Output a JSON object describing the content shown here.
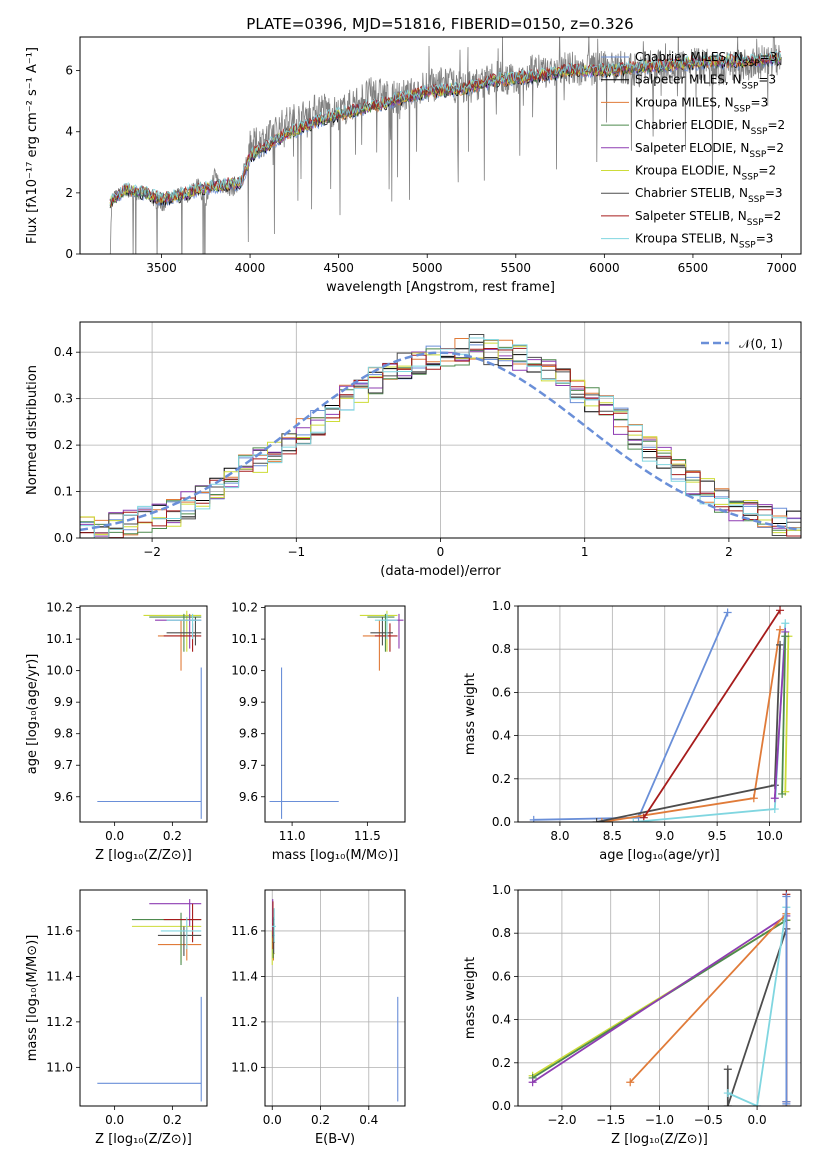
{
  "colors": {
    "Chabrier MILES": "#6a8fd8",
    "Salpeter MILES": "#000000",
    "Kroupa MILES": "#e07b39",
    "Chabrier ELODIE": "#4e8a4e",
    "Salpeter ELODIE": "#8e3db2",
    "Kroupa ELODIE": "#cddc39",
    "Chabrier STELIB": "#4d4d4d",
    "Salpeter STELIB": "#a61c1c",
    "Kroupa STELIB": "#80d6e0"
  },
  "figure_title": "PLATE=0396, MJD=51816, FIBERID=0150, z=0.326",
  "chart_data": [
    {
      "id": "spectrum",
      "type": "line",
      "xlabel": "wavelength [Angstrom, rest frame]",
      "ylabel": "Flux [fλ10⁻¹⁷ erg cm⁻² s⁻¹ A⁻¹]",
      "xlim": [
        3040,
        7110
      ],
      "ylim": [
        0,
        7.1
      ],
      "xticks": [
        3500,
        4000,
        4500,
        5000,
        5500,
        6000,
        6500,
        7000
      ],
      "yticks": [
        0,
        2,
        4,
        6
      ],
      "legend_position": "top-right",
      "legend": [
        "Chabrier MILES, N_SSP=3",
        "Salpeter MILES, N_SSP=3",
        "Kroupa MILES, N_SSP=3",
        "Chabrier ELODIE, N_SSP=2",
        "Salpeter ELODIE, N_SSP=2",
        "Kroupa ELODIE, N_SSP=2",
        "Chabrier STELIB, N_SSP=3",
        "Salpeter STELIB, N_SSP=2",
        "Kroupa STELIB, N_SSP=3"
      ],
      "data_series": {
        "name": "data",
        "color": "#808080",
        "x": [
          3210,
          3220,
          3250,
          3300,
          3350,
          3400,
          3450,
          3500,
          3550,
          3600,
          3650,
          3700,
          3750,
          3800,
          3850,
          3900,
          3950,
          4000,
          4100,
          4200,
          4300,
          4400,
          4500,
          4600,
          4700,
          4800,
          4900,
          5000,
          5100,
          5200,
          5300,
          5400,
          5500,
          5600,
          5700,
          5800,
          5900,
          6000,
          6100,
          6200,
          6300,
          6400,
          6500,
          6600,
          6700,
          6800,
          6900,
          7000
        ],
        "y": [
          0,
          1.8,
          1.9,
          2.1,
          2.0,
          2.0,
          1.8,
          1.6,
          1.7,
          2.0,
          1.9,
          2.3,
          1.7,
          2.6,
          2.2,
          2.1,
          2.4,
          3.5,
          3.8,
          4.3,
          4.5,
          4.8,
          4.6,
          5.0,
          5.3,
          5.1,
          5.2,
          5.5,
          5.6,
          5.4,
          5.6,
          5.8,
          5.7,
          6.0,
          5.9,
          6.1,
          6.0,
          6.2,
          6.1,
          6.0,
          6.2,
          6.1,
          6.3,
          6.0,
          6.1,
          6.2,
          6.3,
          6.4
        ]
      },
      "model_envelope": {
        "x": [
          3210,
          3300,
          3400,
          3500,
          3600,
          3700,
          3800,
          3900,
          3950,
          4000,
          4200,
          4400,
          4600,
          4800,
          5000,
          5200,
          5400,
          5600,
          5800,
          6000,
          6200,
          6400,
          6600,
          6800,
          7000
        ],
        "y": [
          1.7,
          2.1,
          2.0,
          1.8,
          1.9,
          2.1,
          2.2,
          2.3,
          2.3,
          3.2,
          3.9,
          4.4,
          4.7,
          5.0,
          5.3,
          5.4,
          5.7,
          5.8,
          6.0,
          6.0,
          6.1,
          6.2,
          6.3,
          6.3,
          6.4
        ]
      }
    },
    {
      "id": "residuals",
      "type": "step",
      "xlabel": "(data-model)/error",
      "ylabel": "Normed distribution",
      "xlim": [
        -2.5,
        2.5
      ],
      "ylim": [
        0,
        0.465
      ],
      "xticks": [
        -2,
        -1,
        0,
        1,
        2
      ],
      "yticks": [
        0.0,
        0.1,
        0.2,
        0.3,
        0.4
      ],
      "legend": [
        "𝒩(0, 1)"
      ],
      "legend_position": "top-right",
      "normal": {
        "mean": 0,
        "sigma": 1,
        "color": "#6a8fd8"
      },
      "bin_edges": [
        -2.5,
        -2.4,
        -2.3,
        -2.2,
        -2.1,
        -2.0,
        -1.9,
        -1.8,
        -1.7,
        -1.6,
        -1.5,
        -1.4,
        -1.3,
        -1.2,
        -1.1,
        -1.0,
        -0.9,
        -0.8,
        -0.7,
        -0.6,
        -0.5,
        -0.4,
        -0.3,
        -0.2,
        -0.1,
        0.0,
        0.1,
        0.2,
        0.3,
        0.4,
        0.5,
        0.6,
        0.7,
        0.8,
        0.9,
        1.0,
        1.1,
        1.2,
        1.3,
        1.4,
        1.5,
        1.6,
        1.7,
        1.8,
        1.9,
        2.0,
        2.1,
        2.2,
        2.3,
        2.4,
        2.5
      ],
      "hist_base": [
        0.02,
        0.025,
        0.03,
        0.035,
        0.04,
        0.045,
        0.055,
        0.07,
        0.085,
        0.105,
        0.13,
        0.15,
        0.17,
        0.19,
        0.21,
        0.23,
        0.25,
        0.28,
        0.3,
        0.32,
        0.34,
        0.36,
        0.37,
        0.38,
        0.39,
        0.39,
        0.4,
        0.41,
        0.4,
        0.4,
        0.39,
        0.38,
        0.36,
        0.34,
        0.32,
        0.3,
        0.28,
        0.25,
        0.22,
        0.19,
        0.17,
        0.14,
        0.12,
        0.1,
        0.08,
        0.065,
        0.055,
        0.045,
        0.035,
        0.03
      ],
      "series_names": [
        "Chabrier MILES",
        "Salpeter MILES",
        "Kroupa MILES",
        "Chabrier ELODIE",
        "Salpeter ELODIE",
        "Kroupa ELODIE",
        "Chabrier STELIB",
        "Salpeter STELIB",
        "Kroupa STELIB"
      ]
    },
    {
      "id": "age_vs_Z",
      "type": "errorbar",
      "xlabel": "Z [log₁₀(Z/Z⊙)]",
      "ylabel": "age  [log₁₀(age/yr)]",
      "xlim": [
        -0.12,
        0.32
      ],
      "ylim": [
        9.52,
        10.205
      ],
      "xticks": [
        0.0,
        0.2
      ],
      "yticks": [
        9.6,
        9.7,
        9.8,
        9.9,
        10.0,
        10.1,
        10.2
      ],
      "points": [
        {
          "s": "Chabrier MILES",
          "x": 0.3,
          "y": 9.585,
          "xl": -0.06,
          "xh": 0.3,
          "yl": 9.53,
          "yh": 10.01
        },
        {
          "s": "Kroupa MILES",
          "x": 0.23,
          "y": 10.11,
          "xl": 0.15,
          "xh": 0.28,
          "yl": 10.0,
          "yh": 10.16
        },
        {
          "s": "Kroupa ELODIE",
          "x": 0.25,
          "y": 10.175,
          "xl": 0.1,
          "xh": 0.3,
          "yl": 10.06,
          "yh": 10.19
        },
        {
          "s": "Salpeter ELODIE",
          "x": 0.26,
          "y": 10.16,
          "xl": 0.14,
          "xh": 0.3,
          "yl": 10.07,
          "yh": 10.18
        },
        {
          "s": "Chabrier ELODIE",
          "x": 0.24,
          "y": 10.17,
          "xl": 0.12,
          "xh": 0.3,
          "yl": 10.06,
          "yh": 10.18
        },
        {
          "s": "Salpeter STELIB",
          "x": 0.27,
          "y": 10.11,
          "xl": 0.17,
          "xh": 0.3,
          "yl": 10.06,
          "yh": 10.15
        },
        {
          "s": "Chabrier STELIB",
          "x": 0.28,
          "y": 10.12,
          "xl": 0.18,
          "xh": 0.3,
          "yl": 10.08,
          "yh": 10.17
        },
        {
          "s": "Kroupa STELIB",
          "x": 0.27,
          "y": 10.16,
          "xl": 0.18,
          "xh": 0.3,
          "yl": 10.1,
          "yh": 10.18
        }
      ]
    },
    {
      "id": "age_vs_mass",
      "type": "errorbar",
      "xlabel": "mass [log₁₀(M/M⊙)]",
      "ylabel": "",
      "xlim": [
        10.82,
        11.75
      ],
      "ylim": [
        9.52,
        10.205
      ],
      "xticks": [
        11.0,
        11.5
      ],
      "yticks": [
        9.6,
        9.7,
        9.8,
        9.9,
        10.0,
        10.1,
        10.2
      ],
      "points": [
        {
          "s": "Chabrier MILES",
          "x": 10.93,
          "y": 9.585,
          "xl": 10.85,
          "xh": 11.31,
          "yl": 9.53,
          "yh": 10.01
        },
        {
          "s": "Kroupa MILES",
          "x": 11.58,
          "y": 10.11,
          "xl": 11.47,
          "xh": 11.65,
          "yl": 10.0,
          "yh": 10.16
        },
        {
          "s": "Kroupa ELODIE",
          "x": 11.63,
          "y": 10.175,
          "xl": 11.45,
          "xh": 11.7,
          "yl": 10.06,
          "yh": 10.19
        },
        {
          "s": "Salpeter ELODIE",
          "x": 11.71,
          "y": 10.16,
          "xl": 11.62,
          "xh": 11.74,
          "yl": 10.07,
          "yh": 10.18
        },
        {
          "s": "Chabrier ELODIE",
          "x": 11.62,
          "y": 10.17,
          "xl": 11.5,
          "xh": 11.68,
          "yl": 10.06,
          "yh": 10.18
        },
        {
          "s": "Salpeter STELIB",
          "x": 11.65,
          "y": 10.11,
          "xl": 11.55,
          "xh": 11.7,
          "yl": 10.06,
          "yh": 10.15
        },
        {
          "s": "Chabrier STELIB",
          "x": 11.6,
          "y": 10.12,
          "xl": 11.52,
          "xh": 11.67,
          "yl": 10.08,
          "yh": 10.17
        },
        {
          "s": "Kroupa STELIB",
          "x": 11.63,
          "y": 10.16,
          "xl": 11.55,
          "xh": 11.7,
          "yl": 10.1,
          "yh": 10.18
        }
      ]
    },
    {
      "id": "weight_vs_age",
      "type": "line",
      "xlabel": "age  [log₁₀(age/yr)]",
      "ylabel": "mass weight",
      "xlim": [
        7.6,
        10.3
      ],
      "ylim": [
        0,
        1.0
      ],
      "xticks": [
        8.0,
        8.5,
        9.0,
        9.5,
        10.0
      ],
      "yticks": [
        0.0,
        0.2,
        0.4,
        0.6,
        0.8,
        1.0
      ],
      "lines": [
        {
          "s": "Chabrier MILES",
          "x": [
            7.75,
            8.75,
            9.6
          ],
          "y": [
            0.01,
            0.02,
            0.97
          ]
        },
        {
          "s": "Kroupa MILES",
          "x": [
            8.4,
            9.85,
            10.1
          ],
          "y": [
            0.0,
            0.11,
            0.89
          ]
        },
        {
          "s": "Chabrier STELIB",
          "x": [
            8.35,
            10.05,
            10.1
          ],
          "y": [
            0.0,
            0.17,
            0.82
          ]
        },
        {
          "s": "Salpeter STELIB",
          "x": [
            8.8,
            10.1
          ],
          "y": [
            0.02,
            0.98
          ]
        },
        {
          "s": "Kroupa STELIB",
          "x": [
            8.7,
            10.05,
            10.15
          ],
          "y": [
            0.0,
            0.06,
            0.92
          ]
        },
        {
          "s": "Kroupa ELODIE",
          "x": [
            10.15,
            10.18
          ],
          "y": [
            0.14,
            0.86
          ]
        },
        {
          "s": "Salpeter ELODIE",
          "x": [
            10.05,
            10.15
          ],
          "y": [
            0.11,
            0.88
          ]
        },
        {
          "s": "Chabrier ELODIE",
          "x": [
            10.12,
            10.15
          ],
          "y": [
            0.13,
            0.86
          ]
        }
      ]
    },
    {
      "id": "mass_vs_Z",
      "type": "errorbar",
      "xlabel": "Z [log₁₀(Z/Z⊙)]",
      "ylabel": "mass [log₁₀(M/M⊙)]",
      "xlim": [
        -0.12,
        0.32
      ],
      "ylim": [
        10.83,
        11.78
      ],
      "xticks": [
        0.0,
        0.2
      ],
      "yticks": [
        11.0,
        11.2,
        11.4,
        11.6
      ],
      "points": [
        {
          "s": "Chabrier MILES",
          "x": 0.3,
          "y": 10.93,
          "xl": -0.06,
          "xh": 0.3,
          "yl": 10.85,
          "yh": 11.31
        },
        {
          "s": "Kroupa MILES",
          "x": 0.25,
          "y": 11.54,
          "xl": 0.15,
          "xh": 0.3,
          "yl": 11.47,
          "yh": 11.62
        },
        {
          "s": "Kroupa ELODIE",
          "x": 0.23,
          "y": 11.62,
          "xl": 0.06,
          "xh": 0.3,
          "yl": 11.46,
          "yh": 11.66
        },
        {
          "s": "Salpeter ELODIE",
          "x": 0.26,
          "y": 11.72,
          "xl": 0.12,
          "xh": 0.3,
          "yl": 11.62,
          "yh": 11.74
        },
        {
          "s": "Chabrier ELODIE",
          "x": 0.23,
          "y": 11.65,
          "xl": 0.06,
          "xh": 0.3,
          "yl": 11.45,
          "yh": 11.68
        },
        {
          "s": "Salpeter STELIB",
          "x": 0.27,
          "y": 11.65,
          "xl": 0.17,
          "xh": 0.3,
          "yl": 11.55,
          "yh": 11.72
        },
        {
          "s": "Chabrier STELIB",
          "x": 0.24,
          "y": 11.58,
          "xl": 0.15,
          "xh": 0.3,
          "yl": 11.49,
          "yh": 11.62
        },
        {
          "s": "Kroupa STELIB",
          "x": 0.25,
          "y": 11.6,
          "xl": 0.16,
          "xh": 0.3,
          "yl": 11.52,
          "yh": 11.66
        }
      ]
    },
    {
      "id": "mass_vs_ebv",
      "type": "errorbar",
      "xlabel": "E(B-V)",
      "ylabel": "",
      "xlim": [
        -0.03,
        0.55
      ],
      "ylim": [
        10.83,
        11.78
      ],
      "xticks": [
        0.0,
        0.2,
        0.4
      ],
      "yticks": [
        11.0,
        11.2,
        11.4,
        11.6
      ],
      "points": [
        {
          "s": "Chabrier MILES",
          "x": 0.52,
          "y": 10.93,
          "xl": 0.52,
          "xh": 0.52,
          "yl": 10.85,
          "yh": 11.31
        },
        {
          "s": "Kroupa MILES",
          "x": 0.005,
          "y": 11.55,
          "xl": 0.0,
          "xh": 0.01,
          "yl": 11.47,
          "yh": 11.65
        },
        {
          "s": "Kroupa ELODIE",
          "x": 0.0,
          "y": 11.5,
          "xl": 0.0,
          "xh": 0.01,
          "yl": 11.45,
          "yh": 11.6
        },
        {
          "s": "Salpeter ELODIE",
          "x": 0.002,
          "y": 11.65,
          "xl": 0.0,
          "xh": 0.01,
          "yl": 11.57,
          "yh": 11.74
        },
        {
          "s": "Chabrier ELODIE",
          "x": 0.004,
          "y": 11.55,
          "xl": 0.0,
          "xh": 0.01,
          "yl": 11.48,
          "yh": 11.63
        },
        {
          "s": "Salpeter STELIB",
          "x": 0.003,
          "y": 11.63,
          "xl": 0.0,
          "xh": 0.01,
          "yl": 11.52,
          "yh": 11.73
        },
        {
          "s": "Chabrier STELIB",
          "x": 0.006,
          "y": 11.58,
          "xl": 0.0,
          "xh": 0.01,
          "yl": 11.5,
          "yh": 11.66
        },
        {
          "s": "Kroupa STELIB",
          "x": 0.008,
          "y": 11.62,
          "xl": 0.0,
          "xh": 0.015,
          "yl": 11.55,
          "yh": 11.7
        }
      ]
    },
    {
      "id": "weight_vs_Z",
      "type": "line",
      "xlabel": "Z [log₁₀(Z/Z⊙)]",
      "ylabel": "mass weight",
      "xlim": [
        -2.45,
        0.45
      ],
      "ylim": [
        0,
        1.0
      ],
      "xticks": [
        -2.0,
        -1.5,
        -1.0,
        -0.5,
        0.0
      ],
      "yticks": [
        0.0,
        0.2,
        0.4,
        0.6,
        0.8,
        1.0
      ],
      "lines": [
        {
          "s": "Kroupa ELODIE",
          "x": [
            -2.3,
            0.3
          ],
          "y": [
            0.14,
            0.86
          ]
        },
        {
          "s": "Chabrier ELODIE",
          "x": [
            -2.3,
            0.3
          ],
          "y": [
            0.13,
            0.86
          ]
        },
        {
          "s": "Salpeter ELODIE",
          "x": [
            -2.3,
            0.3
          ],
          "y": [
            0.11,
            0.88
          ]
        },
        {
          "s": "Kroupa MILES",
          "x": [
            -1.3,
            0.3,
            0.3
          ],
          "y": [
            0.11,
            0.89,
            0.0
          ]
        },
        {
          "s": "Chabrier STELIB",
          "x": [
            -0.3,
            -0.3,
            0.3
          ],
          "y": [
            0.17,
            0.0,
            0.82
          ]
        },
        {
          "s": "Kroupa STELIB",
          "x": [
            -0.3,
            0.0,
            0.3
          ],
          "y": [
            0.06,
            0.0,
            0.92
          ]
        },
        {
          "s": "Salpeter STELIB",
          "x": [
            0.3,
            0.3
          ],
          "y": [
            0.02,
            0.98
          ]
        },
        {
          "s": "Chabrier MILES",
          "x": [
            0.3,
            0.3,
            0.3
          ],
          "y": [
            0.01,
            0.02,
            0.97
          ]
        }
      ]
    }
  ]
}
